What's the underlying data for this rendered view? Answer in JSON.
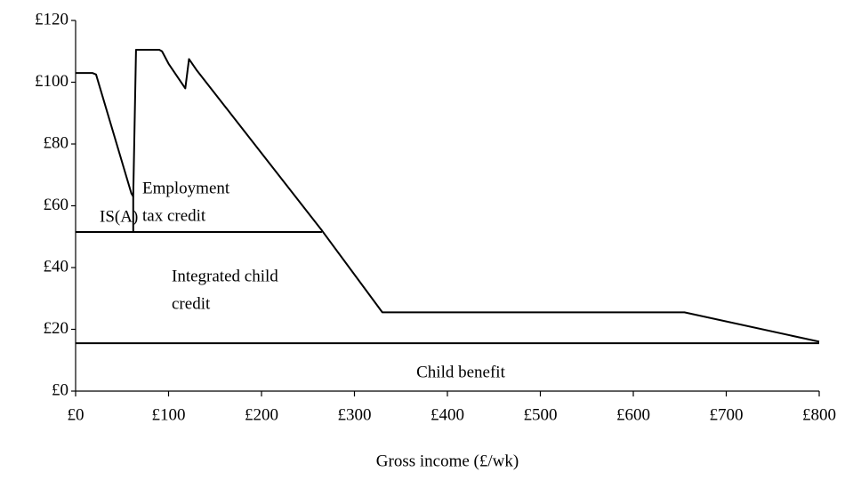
{
  "chart_data": {
    "type": "line",
    "xlabel": "Gross income (£/wk)",
    "series": [
      {
        "color": "#000000",
        "x": [
          0,
          18,
          22,
          60,
          62,
          65,
          90,
          93,
          100,
          118,
          122,
          130,
          265,
          330,
          655,
          800
        ],
        "values": [
          103,
          103,
          102.5,
          64,
          63,
          110.5,
          110.5,
          110,
          106,
          98,
          107.5,
          104,
          52,
          25.5,
          25.5,
          16
        ]
      },
      {
        "color": "#000000",
        "x": [
          0,
          265
        ],
        "values": [
          51.5,
          51.5
        ]
      },
      {
        "color": "#000000",
        "x": [
          62,
          62
        ],
        "values": [
          51.5,
          63
        ]
      },
      {
        "color": "#000000",
        "x": [
          0,
          800
        ],
        "values": [
          15.5,
          15.5
        ]
      }
    ],
    "annotations": [
      {
        "text": [
          "IS(A)"
        ]
      },
      {
        "text": [
          "Employment",
          "tax credit"
        ]
      },
      {
        "text": [
          "Integrated child",
          "credit"
        ]
      },
      {
        "text": [
          "Child benefit"
        ]
      }
    ],
    "xlim": [
      0,
      800
    ],
    "xticks": [
      {
        "value": 0,
        "label": "£0"
      },
      {
        "value": 100,
        "label": "£100"
      },
      {
        "value": 200,
        "label": "£200"
      },
      {
        "value": 300,
        "label": "£300"
      },
      {
        "value": 400,
        "label": "£400"
      },
      {
        "value": 500,
        "label": "£500"
      },
      {
        "value": 600,
        "label": "£600"
      },
      {
        "value": 700,
        "label": "£700"
      },
      {
        "value": 800,
        "label": "£800"
      }
    ],
    "ylim": [
      0,
      120
    ],
    "yticks": [
      {
        "value": 0,
        "label": "£0"
      },
      {
        "value": 20,
        "label": "£20"
      },
      {
        "value": 40,
        "label": "£40"
      },
      {
        "value": 60,
        "label": "£60"
      },
      {
        "value": 80,
        "label": "£80"
      },
      {
        "value": 100,
        "label": "£100"
      },
      {
        "value": 120,
        "label": "£120"
      }
    ],
    "grid": false
  }
}
